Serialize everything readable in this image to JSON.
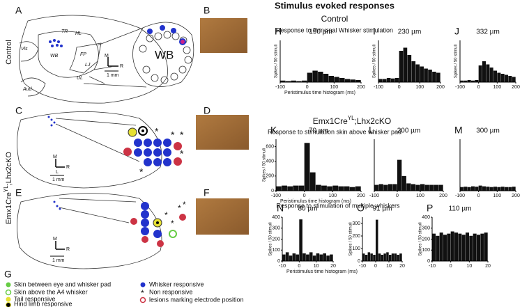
{
  "header": {
    "title": "Stimulus evoked responses",
    "control": "Control",
    "mutant": {
      "main": "Emx1Cre",
      "sup": "YL",
      "rest": ";Lhx2cKO"
    },
    "row1": "Response to Principal Whisker stimulation",
    "row2": "Response to stimulation skin above whisker pad",
    "row3": "Response to stimulation  of multiple whiskers"
  },
  "side_labels": {
    "control": "Control",
    "mutant": {
      "main": "Emx1Cre",
      "sup": "YL",
      "rest": ";Lhx2cKO"
    }
  },
  "panels": {
    "a": "A",
    "b": "B",
    "c": "C",
    "d": "D",
    "e": "E",
    "f": "F",
    "g": "G"
  },
  "map_labels": {
    "vis": "Vis",
    "tr": "TR",
    "hl": "HL",
    "fp": "FP",
    "lj": "LJ",
    "ul": "UL",
    "aud": "Aud",
    "wb_small": "WB",
    "wb_big": "WB",
    "m": "M",
    "r": "R",
    "l": "L",
    "scale": "1 mm"
  },
  "legend": [
    "Skin between eye and whisker pad",
    "Skin above the A4 whisker",
    "Tail responsive",
    "Hind limb responsive",
    "Whisker responsive",
    "Non responsive",
    "lesions marking electrode position"
  ],
  "histograms": [
    {
      "letter": "H",
      "depth": "190 µm",
      "x_label": "Peristimulus time histogram (ms)",
      "y_label": "Spikes / 50 stimuli",
      "xlim": [
        -100,
        200
      ],
      "xticks": [
        -100,
        0,
        100,
        200
      ],
      "ylim": [
        0,
        400
      ],
      "yticks": [],
      "bins": [
        -100,
        -80,
        -60,
        -40,
        -20,
        0,
        20,
        40,
        60,
        80,
        100,
        120,
        140,
        160,
        180,
        200
      ],
      "values": [
        15,
        10,
        15,
        10,
        15,
        90,
        110,
        100,
        80,
        60,
        50,
        40,
        30,
        25,
        20
      ]
    },
    {
      "letter": "I",
      "depth": "230 µm",
      "y_label": "Spikes / 50 stimuli",
      "xlim": [
        -100,
        200
      ],
      "xticks": [
        -100,
        0,
        100,
        200
      ],
      "ylim": [
        0,
        400
      ],
      "yticks": [],
      "bins": [
        -100,
        -80,
        -60,
        -40,
        -20,
        0,
        20,
        40,
        60,
        80,
        100,
        120,
        140,
        160,
        180,
        200
      ],
      "values": [
        30,
        30,
        40,
        35,
        40,
        300,
        330,
        260,
        200,
        170,
        150,
        130,
        120,
        100,
        90
      ]
    },
    {
      "letter": "J",
      "depth": "332 µm",
      "y_label": "Spikes / 50 stimuli",
      "xlim": [
        -100,
        200
      ],
      "xticks": [
        -100,
        0,
        100,
        200
      ],
      "ylim": [
        0,
        400
      ],
      "yticks": [],
      "bins": [
        -100,
        -80,
        -60,
        -40,
        -20,
        0,
        20,
        40,
        60,
        80,
        100,
        120,
        140,
        160,
        180,
        200
      ],
      "values": [
        15,
        15,
        20,
        15,
        20,
        160,
        200,
        170,
        140,
        110,
        90,
        80,
        70,
        60,
        50
      ]
    },
    {
      "letter": "K",
      "depth": "70 µm",
      "x_label": "Peristimulus time histogram (ms)",
      "y_label": "Spikes / 50 stimuli",
      "xlim": [
        -100,
        200
      ],
      "xticks": [
        -100,
        0,
        100,
        200
      ],
      "ylim": [
        0,
        700
      ],
      "yticks": [
        0,
        200,
        400,
        600
      ],
      "bins": [
        -100,
        -80,
        -60,
        -40,
        -20,
        0,
        20,
        40,
        60,
        80,
        100,
        120,
        140,
        160,
        180,
        200
      ],
      "values": [
        60,
        70,
        60,
        70,
        70,
        650,
        250,
        80,
        70,
        60,
        70,
        60,
        60,
        50,
        60
      ]
    },
    {
      "letter": "L",
      "depth": "200 µm",
      "xlim": [
        -100,
        200
      ],
      "xticks": [
        -100,
        0,
        100,
        200
      ],
      "ylim": [
        0,
        700
      ],
      "yticks": [],
      "bins": [
        -100,
        -80,
        -60,
        -40,
        -20,
        0,
        20,
        40,
        60,
        80,
        100,
        120,
        140,
        160,
        180,
        200
      ],
      "values": [
        80,
        90,
        80,
        90,
        90,
        420,
        200,
        100,
        90,
        80,
        90,
        80,
        80,
        80,
        80
      ]
    },
    {
      "letter": "M",
      "depth": "300 µm",
      "xlim": [
        -100,
        200
      ],
      "xticks": [
        -100,
        0,
        100,
        200
      ],
      "ylim": [
        0,
        700
      ],
      "yticks": [],
      "bins": [
        -100,
        -80,
        -60,
        -40,
        -20,
        0,
        20,
        40,
        60,
        80,
        100,
        120,
        140,
        160,
        180,
        200
      ],
      "values": [
        50,
        55,
        50,
        60,
        55,
        70,
        60,
        55,
        50,
        55,
        50,
        55,
        50,
        50,
        55
      ]
    },
    {
      "letter": "N",
      "depth": "80 µm",
      "x_label": "Peristimulus time histogram (ms)",
      "y_label": "Spikes / 50 stimuli",
      "xlim": [
        -10,
        20
      ],
      "xticks": [
        -10,
        0,
        10,
        20
      ],
      "ylim": [
        0,
        400
      ],
      "yticks": [
        0,
        100,
        200,
        300,
        400
      ],
      "bins": [
        -10,
        -8,
        -6,
        -4,
        -2,
        0,
        2,
        4,
        6,
        8,
        10,
        12,
        14,
        16,
        18,
        20
      ],
      "values": [
        60,
        80,
        50,
        70,
        60,
        380,
        70,
        60,
        80,
        50,
        70,
        60,
        70,
        50,
        60
      ]
    },
    {
      "letter": "O",
      "depth": "91 µm",
      "y_label": "Spikes / 50 stimuli",
      "xlim": [
        -10,
        20
      ],
      "xticks": [
        -10,
        0,
        10,
        20
      ],
      "ylim": [
        0,
        350
      ],
      "yticks": [
        0,
        100,
        200,
        300
      ],
      "bins": [
        -10,
        -8,
        -6,
        -4,
        -2,
        0,
        2,
        4,
        6,
        8,
        10,
        12,
        14,
        16,
        18,
        20
      ],
      "values": [
        60,
        50,
        70,
        60,
        50,
        330,
        60,
        50,
        60,
        70,
        50,
        60,
        60,
        50,
        60
      ]
    },
    {
      "letter": "P",
      "depth": "110 µm",
      "y_label": "Spikes / 50 stimuli",
      "xlim": [
        -10,
        20
      ],
      "xticks": [
        -10,
        0,
        10,
        20
      ],
      "ylim": [
        0,
        400
      ],
      "yticks": [
        0,
        100,
        200,
        300,
        400
      ],
      "bins": [
        -10,
        -8,
        -6,
        -4,
        -2,
        0,
        2,
        4,
        6,
        8,
        10,
        12,
        14,
        16,
        18,
        20
      ],
      "values": [
        250,
        230,
        260,
        240,
        250,
        270,
        260,
        250,
        240,
        260,
        230,
        250,
        240,
        250,
        260
      ]
    }
  ]
}
